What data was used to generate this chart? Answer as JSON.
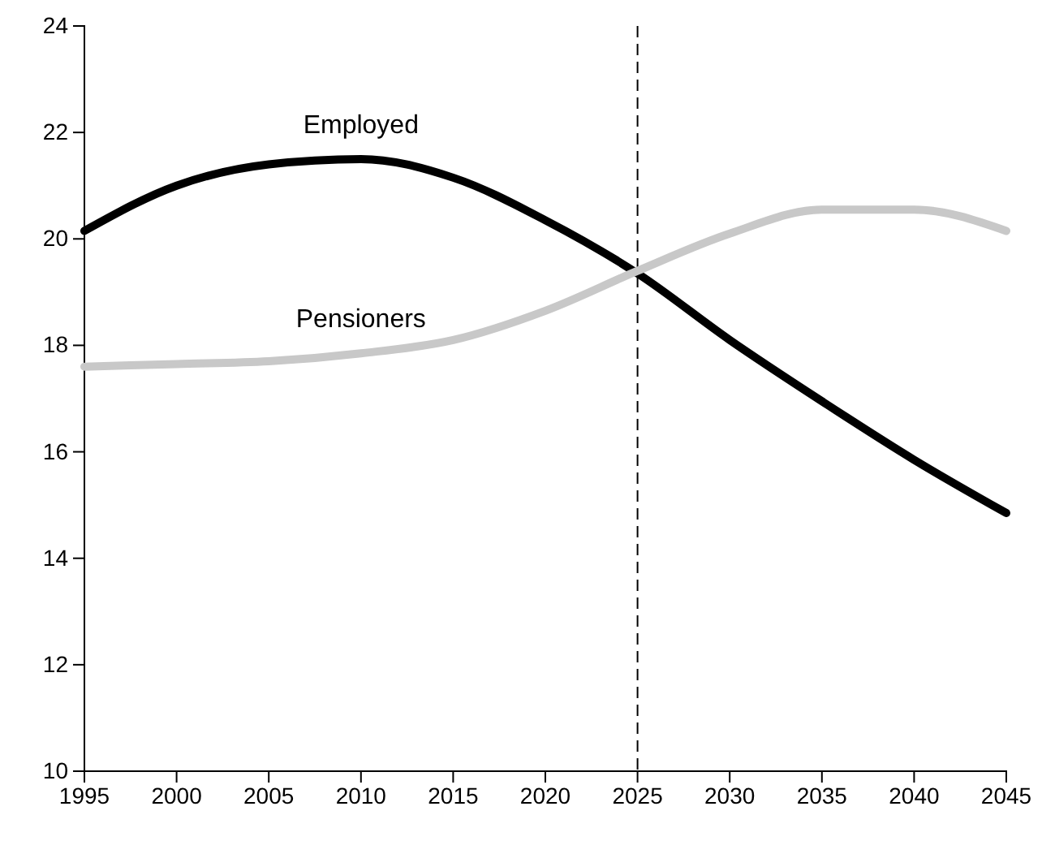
{
  "chart_data": {
    "type": "line",
    "x": [
      1995,
      2000,
      2005,
      2010,
      2015,
      2020,
      2025,
      2030,
      2035,
      2040,
      2045
    ],
    "series": [
      {
        "name": "Employed",
        "color": "#000000",
        "values": [
          20.15,
          21.0,
          21.4,
          21.5,
          21.15,
          20.35,
          19.35,
          18.1,
          16.95,
          15.85,
          14.85
        ]
      },
      {
        "name": "Pensioners",
        "color": "#c8c8c8",
        "values": [
          17.6,
          17.65,
          17.7,
          17.85,
          18.1,
          18.65,
          19.4,
          20.1,
          20.55,
          20.55,
          20.15
        ]
      }
    ],
    "xlim": [
      1995,
      2045
    ],
    "xticks": [
      1995,
      2000,
      2005,
      2010,
      2015,
      2020,
      2025,
      2030,
      2035,
      2040,
      2045
    ],
    "ylim": [
      10,
      24
    ],
    "yticks": [
      10,
      12,
      14,
      16,
      18,
      20,
      22,
      24
    ],
    "ref_lines": [
      {
        "axis": "x",
        "value": 2025,
        "color": "#000000",
        "line_style": "dashed"
      }
    ],
    "grid": false,
    "legend": false,
    "marker": "none",
    "line_style": "solid"
  }
}
